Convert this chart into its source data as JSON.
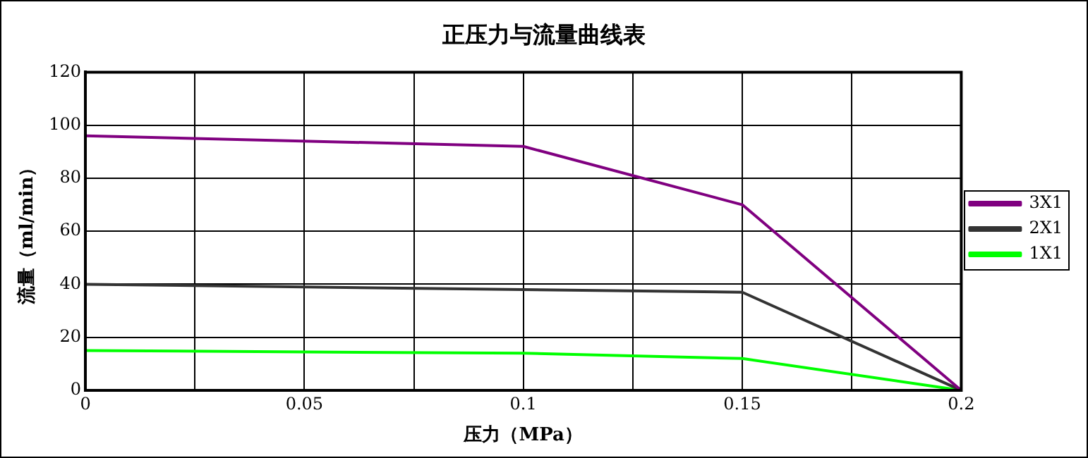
{
  "chart_data": {
    "type": "line",
    "title": "正压力与流量曲线表",
    "xlabel": "压力（MPa）",
    "ylabel": "流量（ml/min）",
    "x": [
      0,
      0.1,
      0.15,
      0.2
    ],
    "series": [
      {
        "name": "3X1",
        "color": "#800080",
        "values": [
          96,
          92,
          70,
          0
        ]
      },
      {
        "name": "2X1",
        "color": "#333333",
        "values": [
          40,
          38,
          37,
          0
        ]
      },
      {
        "name": "1X1",
        "color": "#00ff00",
        "values": [
          15,
          14,
          12,
          0
        ]
      }
    ],
    "xlim": [
      0,
      0.2
    ],
    "xticks": [
      0,
      {
        "value": 0.025,
        "label": null
      },
      0.05,
      {
        "value": 0.075,
        "label": null
      },
      0.1,
      {
        "value": 0.125,
        "label": null
      },
      0.15,
      {
        "value": 0.175,
        "label": null
      },
      0.2
    ],
    "ylim": [
      0,
      120
    ],
    "yticks": [
      0,
      20,
      40,
      60,
      80,
      100,
      120
    ],
    "grid": true,
    "legend": "right",
    "marker": "none",
    "line_style": "solid"
  }
}
